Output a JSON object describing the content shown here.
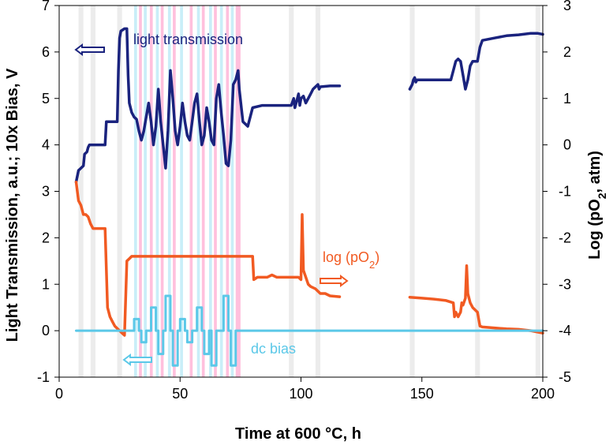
{
  "chart_data": {
    "type": "line",
    "xlabel": "Time at 600 °C, h",
    "ylabel": "Light Transmission, a.u.;   10x Bias, V",
    "y2label_prefix": "Log (pO",
    "y2label_sub": "2",
    "y2label_suffix": ", atm)",
    "xlim": [
      0,
      200
    ],
    "ylim": [
      -1,
      7
    ],
    "y2lim": [
      -5,
      3
    ],
    "x_ticks": [
      "0",
      "50",
      "100",
      "150",
      "200"
    ],
    "y_ticks": [
      "-1",
      "0",
      "1",
      "2",
      "3",
      "4",
      "5",
      "6",
      "7"
    ],
    "y2_ticks": [
      "-5",
      "-4",
      "-3",
      "-2",
      "-1",
      "0",
      "1",
      "2",
      "3"
    ],
    "colors": {
      "light": "#1a237e",
      "po2": "#f15a22",
      "bias": "#5bc8e8",
      "band_gray": "#ececec",
      "band_pink": "#ffc0dd",
      "band_cyan": "#c9eef8"
    },
    "background_bands": [
      {
        "x": 8,
        "w": 2,
        "kind": "gray"
      },
      {
        "x": 13,
        "w": 2,
        "kind": "gray"
      },
      {
        "x": 24,
        "w": 2,
        "kind": "gray"
      },
      {
        "x": 31,
        "w": 1.2,
        "kind": "cyan"
      },
      {
        "x": 33,
        "w": 1.2,
        "kind": "pink"
      },
      {
        "x": 35,
        "w": 1.2,
        "kind": "cyan"
      },
      {
        "x": 37.5,
        "w": 1.2,
        "kind": "pink"
      },
      {
        "x": 40,
        "w": 1.2,
        "kind": "cyan"
      },
      {
        "x": 42,
        "w": 1.2,
        "kind": "pink"
      },
      {
        "x": 45,
        "w": 1.2,
        "kind": "cyan"
      },
      {
        "x": 47,
        "w": 1.2,
        "kind": "pink"
      },
      {
        "x": 50,
        "w": 1.2,
        "kind": "cyan"
      },
      {
        "x": 54,
        "w": 1.2,
        "kind": "pink"
      },
      {
        "x": 57,
        "w": 1.2,
        "kind": "cyan"
      },
      {
        "x": 59,
        "w": 1.2,
        "kind": "pink"
      },
      {
        "x": 62,
        "w": 1.2,
        "kind": "cyan"
      },
      {
        "x": 64,
        "w": 1.2,
        "kind": "pink"
      },
      {
        "x": 66.5,
        "w": 1.2,
        "kind": "cyan"
      },
      {
        "x": 69,
        "w": 1.2,
        "kind": "pink"
      },
      {
        "x": 71,
        "w": 1.2,
        "kind": "cyan"
      },
      {
        "x": 73,
        "w": 2,
        "kind": "pink"
      },
      {
        "x": 95,
        "w": 2,
        "kind": "gray"
      },
      {
        "x": 106,
        "w": 2,
        "kind": "gray"
      },
      {
        "x": 145,
        "w": 2,
        "kind": "gray"
      },
      {
        "x": 172,
        "w": 2,
        "kind": "gray"
      },
      {
        "x": 197,
        "w": 2,
        "kind": "gray"
      }
    ],
    "series": [
      {
        "name": "light transmission",
        "axis": "left",
        "color_key": "light",
        "segments": [
          [
            [
              7,
              3.2
            ],
            [
              8,
              3.45
            ],
            [
              9,
              3.5
            ],
            [
              10,
              3.55
            ],
            [
              10.5,
              3.8
            ],
            [
              11.5,
              3.85
            ],
            [
              12,
              3.95
            ],
            [
              12.5,
              4.0
            ],
            [
              19,
              4.0
            ],
            [
              19.5,
              4.5
            ],
            [
              24,
              4.5
            ],
            [
              24.5,
              5.6
            ],
            [
              25,
              6.3
            ],
            [
              25.5,
              6.45
            ],
            [
              27,
              6.5
            ],
            [
              28,
              6.5
            ],
            [
              28.5,
              5.5
            ],
            [
              29,
              4.9
            ],
            [
              30,
              4.7
            ],
            [
              31,
              4.6
            ],
            [
              32,
              4.55
            ],
            [
              33,
              4.3
            ],
            [
              34,
              4.1
            ],
            [
              35,
              4.3
            ],
            [
              36,
              4.6
            ],
            [
              37,
              4.9
            ],
            [
              38,
              4.5
            ],
            [
              39,
              4.0
            ],
            [
              40,
              4.4
            ],
            [
              41,
              5.2
            ],
            [
              42,
              4.5
            ],
            [
              43,
              4.0
            ],
            [
              44,
              3.5
            ],
            [
              45,
              4.3
            ],
            [
              46,
              5.6
            ],
            [
              47,
              5.0
            ],
            [
              48,
              4.3
            ],
            [
              49,
              4.0
            ],
            [
              50,
              4.4
            ],
            [
              51,
              4.9
            ],
            [
              52,
              4.5
            ],
            [
              53,
              4.2
            ],
            [
              54,
              4.1
            ],
            [
              55,
              4.5
            ],
            [
              56,
              4.9
            ],
            [
              57,
              5.1
            ],
            [
              58,
              4.5
            ],
            [
              59,
              4.0
            ],
            [
              60,
              4.2
            ],
            [
              61,
              4.8
            ],
            [
              62,
              4.5
            ],
            [
              63,
              4.1
            ],
            [
              64,
              4.0
            ],
            [
              65,
              5.0
            ],
            [
              66,
              5.3
            ],
            [
              67,
              4.7
            ],
            [
              68,
              4.2
            ],
            [
              69,
              3.6
            ],
            [
              70,
              3.55
            ],
            [
              71,
              4.1
            ],
            [
              72,
              5.3
            ],
            [
              73,
              5.4
            ],
            [
              74,
              5.6
            ],
            [
              74.5,
              5.2
            ],
            [
              76,
              4.5
            ],
            [
              78,
              4.4
            ],
            [
              80,
              4.8
            ],
            [
              84,
              4.85
            ],
            [
              90,
              4.85
            ],
            [
              96,
              4.85
            ],
            [
              97,
              5.0
            ],
            [
              97.5,
              4.8
            ],
            [
              98,
              4.9
            ],
            [
              99,
              5.1
            ],
            [
              99.5,
              4.85
            ],
            [
              100,
              5.0
            ],
            [
              101,
              5.05
            ],
            [
              102,
              4.9
            ],
            [
              103,
              5.0
            ],
            [
              104,
              5.1
            ],
            [
              105,
              5.2
            ],
            [
              106,
              5.25
            ],
            [
              107,
              5.3
            ],
            [
              107.5,
              5.2
            ],
            [
              108,
              5.25
            ],
            [
              112,
              5.27
            ],
            [
              116,
              5.27
            ]
          ],
          [
            [
              145,
              5.2
            ],
            [
              146,
              5.3
            ],
            [
              146.5,
              5.4
            ],
            [
              147,
              5.45
            ],
            [
              147.5,
              5.35
            ],
            [
              148,
              5.4
            ],
            [
              155,
              5.4
            ],
            [
              162,
              5.4
            ],
            [
              163,
              5.6
            ],
            [
              164,
              5.8
            ],
            [
              165,
              5.85
            ],
            [
              166,
              5.8
            ],
            [
              167,
              5.5
            ],
            [
              168,
              5.2
            ],
            [
              169,
              5.4
            ],
            [
              170,
              5.7
            ],
            [
              171,
              5.8
            ],
            [
              173,
              5.8
            ],
            [
              174,
              6.1
            ],
            [
              175,
              6.25
            ],
            [
              180,
              6.3
            ],
            [
              185,
              6.35
            ],
            [
              190,
              6.37
            ],
            [
              195,
              6.4
            ],
            [
              198,
              6.4
            ],
            [
              200,
              6.38
            ]
          ]
        ]
      },
      {
        "name": "log (pO2)",
        "axis": "right",
        "color_key": "po2",
        "segments": [
          [
            [
              7,
              -0.8
            ],
            [
              8,
              -1.2
            ],
            [
              9,
              -1.3
            ],
            [
              10,
              -1.5
            ],
            [
              11,
              -1.5
            ],
            [
              12,
              -1.55
            ],
            [
              13,
              -1.7
            ],
            [
              14,
              -1.8
            ],
            [
              19,
              -1.8
            ],
            [
              20,
              -3.5
            ],
            [
              21,
              -3.7
            ],
            [
              22,
              -3.8
            ],
            [
              23,
              -3.9
            ],
            [
              24,
              -3.95
            ],
            [
              25,
              -4.0
            ],
            [
              26,
              -4.05
            ],
            [
              27,
              -4.1
            ],
            [
              28,
              -2.5
            ],
            [
              29,
              -2.45
            ],
            [
              30,
              -2.4
            ],
            [
              40,
              -2.4
            ],
            [
              50,
              -2.4
            ],
            [
              60,
              -2.4
            ],
            [
              70,
              -2.4
            ],
            [
              80,
              -2.4
            ],
            [
              80.5,
              -2.9
            ],
            [
              82,
              -2.85
            ],
            [
              86,
              -2.85
            ],
            [
              88,
              -2.8
            ],
            [
              90,
              -2.85
            ],
            [
              94,
              -2.85
            ],
            [
              96,
              -2.85
            ],
            [
              99,
              -2.85
            ],
            [
              100,
              -2.9
            ],
            [
              100.5,
              -1.5
            ],
            [
              101,
              -2.7
            ],
            [
              103,
              -3.0
            ],
            [
              104,
              -3.05
            ],
            [
              106,
              -3.1
            ],
            [
              108,
              -3.2
            ],
            [
              110,
              -3.2
            ],
            [
              112,
              -3.25
            ],
            [
              116,
              -3.27
            ]
          ],
          [
            [
              145,
              -3.28
            ],
            [
              150,
              -3.3
            ],
            [
              155,
              -3.32
            ],
            [
              160,
              -3.35
            ],
            [
              163,
              -3.4
            ],
            [
              163.5,
              -3.7
            ],
            [
              164,
              -3.6
            ],
            [
              165,
              -3.7
            ],
            [
              166,
              -3.6
            ],
            [
              166.5,
              -3.4
            ],
            [
              167,
              -3.45
            ],
            [
              168,
              -3.3
            ],
            [
              168.5,
              -2.6
            ],
            [
              169,
              -3.2
            ],
            [
              170,
              -3.4
            ],
            [
              171,
              -3.5
            ],
            [
              173,
              -3.6
            ],
            [
              174,
              -3.9
            ],
            [
              175,
              -3.92
            ],
            [
              180,
              -3.94
            ],
            [
              185,
              -3.96
            ],
            [
              190,
              -3.97
            ],
            [
              195,
              -4.0
            ],
            [
              200,
              -4.05
            ]
          ]
        ]
      },
      {
        "name": "dc bias",
        "axis": "left",
        "color_key": "bias",
        "segments": [
          [
            [
              7,
              0
            ],
            [
              31,
              0
            ],
            [
              31,
              0.25
            ],
            [
              33,
              0.25
            ],
            [
              33,
              0
            ],
            [
              34,
              0
            ],
            [
              34,
              -0.25
            ],
            [
              36,
              -0.25
            ],
            [
              36,
              0
            ],
            [
              38,
              0
            ],
            [
              38,
              0.5
            ],
            [
              40,
              0.5
            ],
            [
              40,
              0
            ],
            [
              41,
              0
            ],
            [
              41,
              -0.5
            ],
            [
              43,
              -0.5
            ],
            [
              43,
              0
            ],
            [
              44,
              0
            ],
            [
              44,
              0.75
            ],
            [
              46,
              0.75
            ],
            [
              46,
              0
            ],
            [
              47,
              0
            ],
            [
              47,
              -0.75
            ],
            [
              49,
              -0.75
            ],
            [
              49,
              0
            ],
            [
              50,
              0
            ],
            [
              50,
              0.25
            ],
            [
              52,
              0.25
            ],
            [
              52,
              0
            ],
            [
              53,
              0
            ],
            [
              53,
              -0.25
            ],
            [
              55,
              -0.25
            ],
            [
              55,
              0
            ],
            [
              57,
              0
            ],
            [
              57,
              0.5
            ],
            [
              59,
              0.5
            ],
            [
              59,
              0
            ],
            [
              60,
              0
            ],
            [
              60,
              -0.5
            ],
            [
              62,
              -0.5
            ],
            [
              62,
              0
            ],
            [
              63,
              0
            ],
            [
              63,
              -0.75
            ],
            [
              65,
              -0.75
            ],
            [
              65,
              0
            ],
            [
              66,
              0
            ],
            [
              66,
              0
            ],
            [
              68,
              0
            ],
            [
              68,
              0.75
            ],
            [
              70,
              0.75
            ],
            [
              70,
              0
            ],
            [
              71,
              0
            ],
            [
              71,
              -0.75
            ],
            [
              73,
              -0.75
            ],
            [
              73,
              0
            ],
            [
              200,
              0
            ]
          ]
        ]
      }
    ],
    "annotations": {
      "light_label": "light transmission",
      "po2_label_prefix": "log (pO",
      "po2_label_sub": "2",
      "po2_label_suffix": ")",
      "bias_label": "dc bias"
    }
  }
}
